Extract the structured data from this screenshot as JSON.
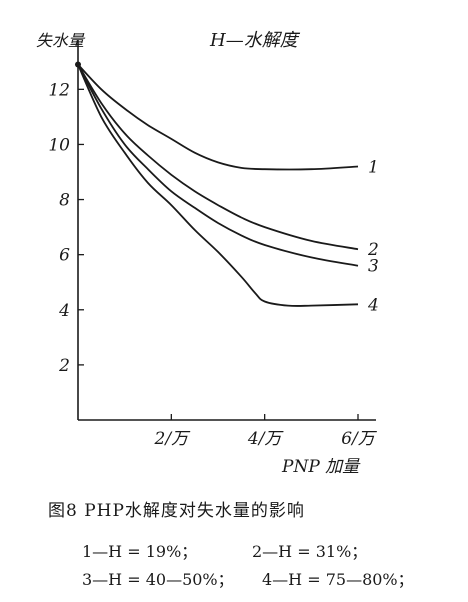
{
  "chart_data": {
    "type": "line",
    "title": "H—水解度",
    "ylabel": "失水量",
    "xlabel": "PNP 加量",
    "xlim": [
      0,
      6
    ],
    "ylim": [
      0,
      13.5
    ],
    "x_ticks": [
      {
        "value": 2,
        "label": "2/万"
      },
      {
        "value": 4,
        "label": "4/万"
      },
      {
        "value": 6,
        "label": "6/万"
      }
    ],
    "y_ticks": [
      {
        "value": 2,
        "label": "2"
      },
      {
        "value": 4,
        "label": "4"
      },
      {
        "value": 6,
        "label": "6"
      },
      {
        "value": 8,
        "label": "8"
      },
      {
        "value": 10,
        "label": "10"
      },
      {
        "value": 12,
        "label": "12"
      }
    ],
    "grid": false,
    "series": [
      {
        "name": "1",
        "x": [
          0,
          0.5,
          1,
          1.5,
          2,
          2.5,
          3,
          3.5,
          4,
          5,
          6
        ],
        "values": [
          12.9,
          12.0,
          11.3,
          10.7,
          10.2,
          9.7,
          9.35,
          9.15,
          9.1,
          9.1,
          9.2
        ]
      },
      {
        "name": "2",
        "x": [
          0,
          0.5,
          1,
          1.5,
          2,
          2.5,
          3,
          3.5,
          4,
          5,
          6
        ],
        "values": [
          12.9,
          11.5,
          10.4,
          9.6,
          8.9,
          8.3,
          7.8,
          7.35,
          7.0,
          6.5,
          6.2
        ]
      },
      {
        "name": "3",
        "x": [
          0,
          0.5,
          1,
          1.5,
          2,
          2.5,
          3,
          3.5,
          4,
          5,
          6
        ],
        "values": [
          12.9,
          11.3,
          10.0,
          9.1,
          8.3,
          7.7,
          7.15,
          6.7,
          6.35,
          5.9,
          5.6
        ]
      },
      {
        "name": "4",
        "x": [
          0,
          0.5,
          1,
          1.5,
          2,
          2.5,
          3,
          3.5,
          3.8,
          4,
          4.5,
          5,
          6
        ],
        "values": [
          12.9,
          11.0,
          9.7,
          8.6,
          7.8,
          6.9,
          6.1,
          5.2,
          4.6,
          4.3,
          4.15,
          4.15,
          4.2
        ]
      }
    ]
  },
  "caption": {
    "title": "图8  PHP水解度对失水量的影响",
    "legend": [
      "1—H = 19%；",
      "2—H = 31%；",
      "3—H = 40—50%；",
      "4—H = 75—80%；"
    ]
  }
}
